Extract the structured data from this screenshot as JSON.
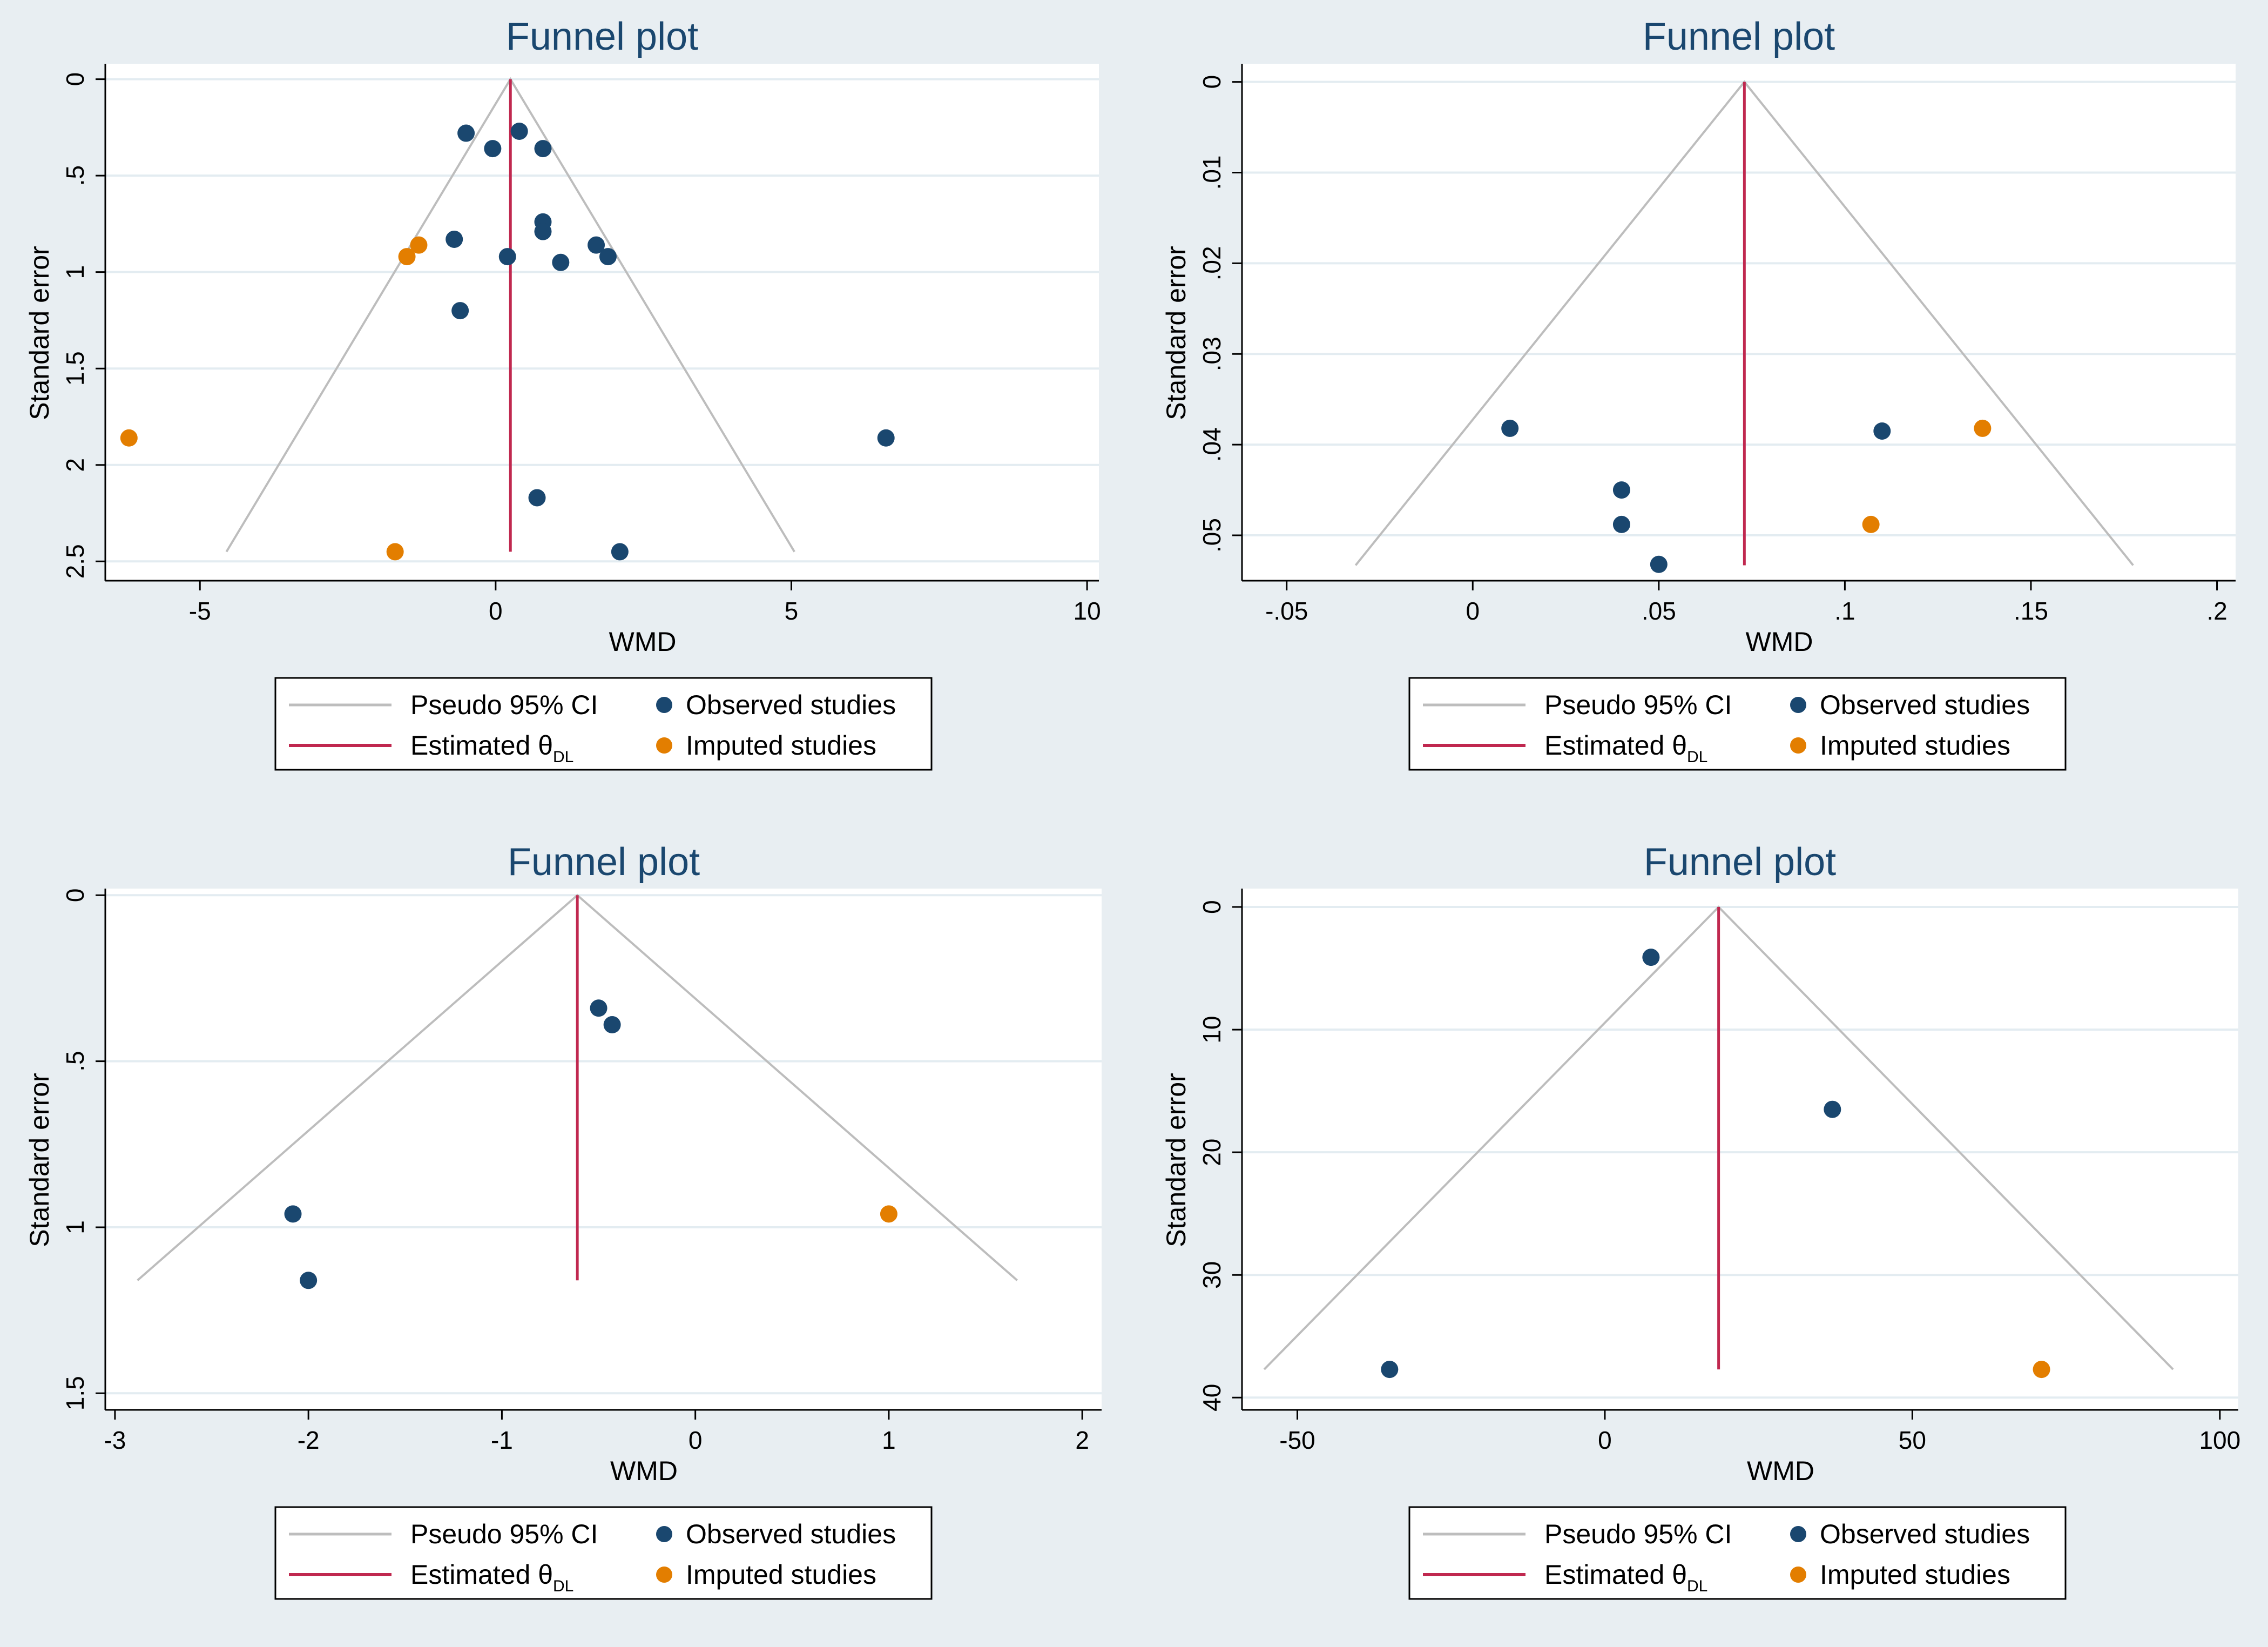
{
  "colors": {
    "observed": "#1a476f",
    "imputed": "#e37e00",
    "ci": "#bdbdbd",
    "estimate": "#c0284f",
    "title": "#1a476f"
  },
  "legend": {
    "ci": "Pseudo 95% CI",
    "estimate": "Estimated θ",
    "estimate_sub": "DL",
    "observed": "Observed studies",
    "imputed": "Imputed studies"
  },
  "chart_data": [
    {
      "type": "scatter",
      "title": "Funnel plot",
      "xlabel": "WMD",
      "ylabel": "Standard error",
      "xlim": [
        -6.6,
        10.2
      ],
      "ylim": [
        -0.08,
        2.6
      ],
      "y_reversed": true,
      "xticks": [
        -5,
        0,
        5,
        10
      ],
      "xtick_labels": [
        "-5",
        "0",
        "5",
        "10"
      ],
      "yticks": [
        0,
        0.5,
        1,
        1.5,
        2,
        2.5
      ],
      "ytick_labels": [
        "0",
        ".5",
        "1",
        "1.5",
        "2",
        "2.5"
      ],
      "estimate": 0.25,
      "se_max": 2.45,
      "observed": [
        {
          "x": -0.5,
          "y": 0.28
        },
        {
          "x": 0.4,
          "y": 0.27
        },
        {
          "x": -0.05,
          "y": 0.36
        },
        {
          "x": 0.8,
          "y": 0.36
        },
        {
          "x": 0.8,
          "y": 0.74
        },
        {
          "x": 0.8,
          "y": 0.79
        },
        {
          "x": -0.7,
          "y": 0.83
        },
        {
          "x": 1.7,
          "y": 0.86
        },
        {
          "x": 1.9,
          "y": 0.92
        },
        {
          "x": 0.2,
          "y": 0.92
        },
        {
          "x": 1.1,
          "y": 0.95
        },
        {
          "x": -0.6,
          "y": 1.2
        },
        {
          "x": 6.6,
          "y": 1.86
        },
        {
          "x": 0.7,
          "y": 2.17
        },
        {
          "x": 2.1,
          "y": 2.45
        }
      ],
      "imputed": [
        {
          "x": -1.3,
          "y": 0.86
        },
        {
          "x": -1.5,
          "y": 0.92
        },
        {
          "x": -6.2,
          "y": 1.86
        },
        {
          "x": -1.7,
          "y": 2.45
        }
      ]
    },
    {
      "type": "scatter",
      "title": "Funnel plot",
      "xlabel": "WMD",
      "ylabel": "Standard error",
      "xlim": [
        -0.062,
        0.205
      ],
      "ylim": [
        -0.002,
        0.055
      ],
      "y_reversed": true,
      "xticks": [
        -0.05,
        0,
        0.05,
        0.1,
        0.15,
        0.2
      ],
      "xtick_labels": [
        "-.05",
        "0",
        ".05",
        ".1",
        ".15",
        ".2"
      ],
      "yticks": [
        0,
        0.01,
        0.02,
        0.03,
        0.04,
        0.05
      ],
      "ytick_labels": [
        "0",
        ".01",
        ".02",
        ".03",
        ".04",
        ".05"
      ],
      "estimate": 0.073,
      "se_max": 0.0533,
      "observed": [
        {
          "x": 0.01,
          "y": 0.0382
        },
        {
          "x": 0.11,
          "y": 0.0385
        },
        {
          "x": 0.04,
          "y": 0.045
        },
        {
          "x": 0.04,
          "y": 0.0488
        },
        {
          "x": 0.05,
          "y": 0.0532
        }
      ],
      "imputed": [
        {
          "x": 0.137,
          "y": 0.0382
        },
        {
          "x": 0.107,
          "y": 0.0488
        }
      ]
    },
    {
      "type": "scatter",
      "title": "Funnel plot",
      "xlabel": "WMD",
      "ylabel": "Standard error",
      "xlim": [
        -3.05,
        2.1
      ],
      "ylim": [
        -0.02,
        1.55
      ],
      "y_reversed": true,
      "xticks": [
        -3,
        -2,
        -1,
        0,
        1,
        2
      ],
      "xtick_labels": [
        "-3",
        "-2",
        "-1",
        "0",
        "1",
        "2"
      ],
      "yticks": [
        0,
        0.5,
        1,
        1.5
      ],
      "ytick_labels": [
        "0",
        ".5",
        "1",
        "1.5"
      ],
      "estimate": -0.61,
      "se_max": 1.16,
      "observed": [
        {
          "x": -0.5,
          "y": 0.34
        },
        {
          "x": -0.43,
          "y": 0.39
        },
        {
          "x": -2.08,
          "y": 0.96
        },
        {
          "x": -2.0,
          "y": 1.16
        }
      ],
      "imputed": [
        {
          "x": 1.0,
          "y": 0.96
        }
      ]
    },
    {
      "type": "scatter",
      "title": "Funnel plot",
      "xlabel": "WMD",
      "ylabel": "Standard error",
      "xlim": [
        -59,
        103
      ],
      "ylim": [
        -1.5,
        41
      ],
      "y_reversed": true,
      "xticks": [
        -50,
        0,
        50,
        100
      ],
      "xtick_labels": [
        "-50",
        "0",
        "50",
        "100"
      ],
      "yticks": [
        0,
        10,
        20,
        30,
        40
      ],
      "ytick_labels": [
        "0",
        "10",
        "20",
        "30",
        "40"
      ],
      "estimate": 18.5,
      "se_max": 37.7,
      "observed": [
        {
          "x": 7.5,
          "y": 4.1
        },
        {
          "x": 37,
          "y": 16.5
        },
        {
          "x": -35,
          "y": 37.7
        }
      ],
      "imputed": [
        {
          "x": 71,
          "y": 37.7
        }
      ]
    }
  ]
}
